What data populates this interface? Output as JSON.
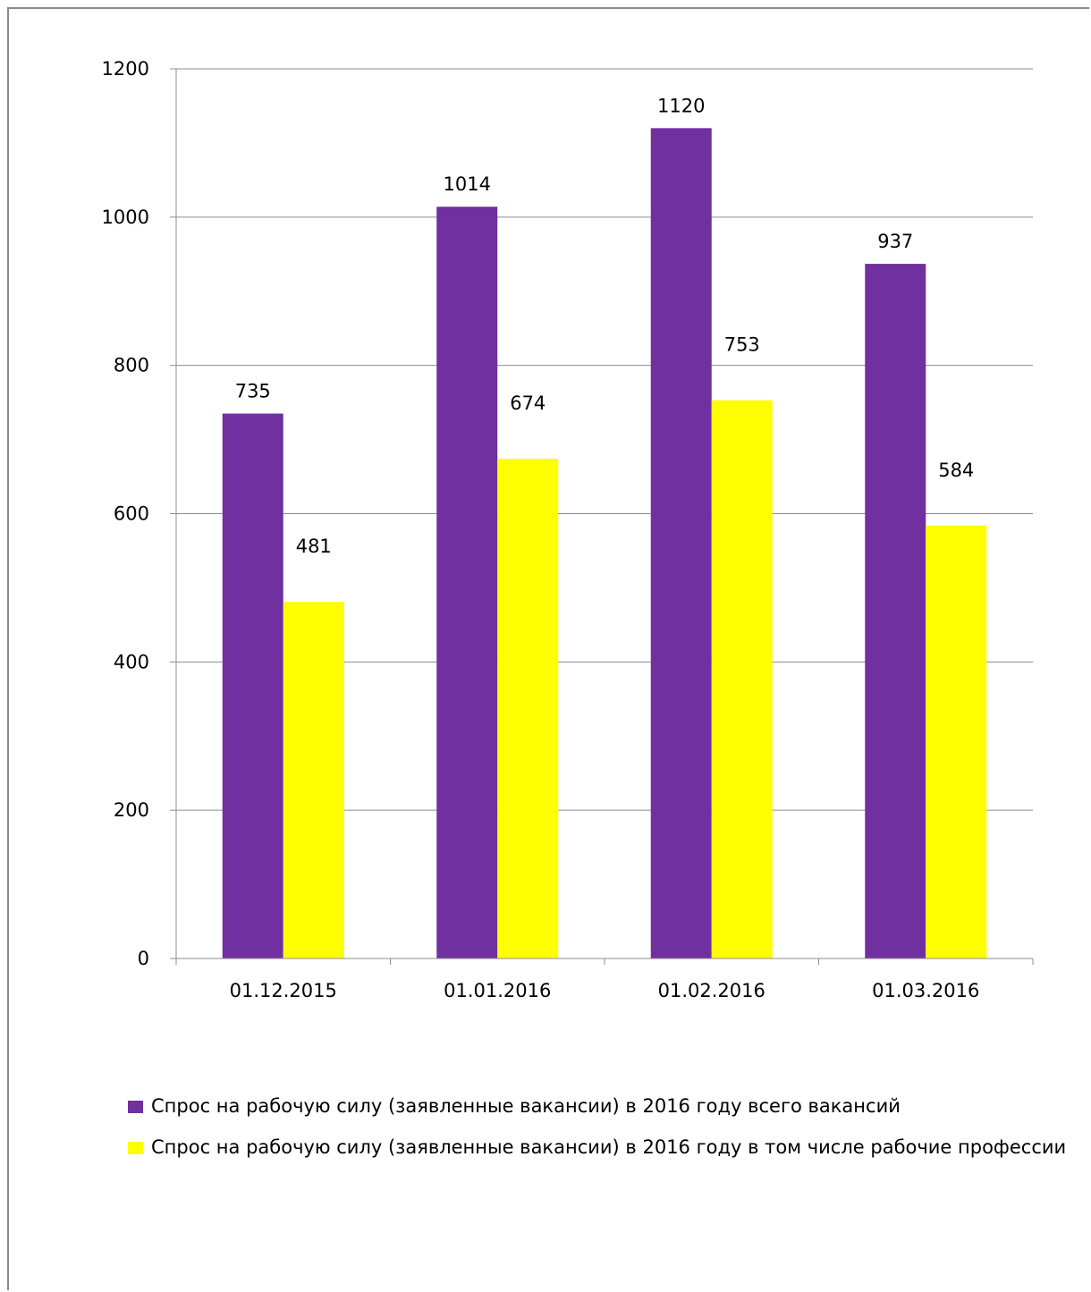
{
  "chart_data": {
    "type": "bar",
    "categories": [
      "01.12.2015",
      "01.01.2016",
      "01.02.2016",
      "01.03.2016"
    ],
    "series": [
      {
        "name": "Спрос на рабочую силу (заявленные вакансии) в 2016 году всего вакансий",
        "values": [
          735,
          1014,
          1120,
          937
        ],
        "color": "#7030A0"
      },
      {
        "name": "Спрос на рабочую силу (заявленные вакансии) в 2016 году в том числе рабочие профессии",
        "values": [
          481,
          674,
          753,
          584
        ],
        "color": "#FFFF00"
      }
    ],
    "yticks": [
      0,
      200,
      400,
      600,
      800,
      1000,
      1200
    ],
    "ylim": [
      0,
      1200
    ],
    "grid": true,
    "legend_position": "bottom",
    "data_labels": true
  }
}
